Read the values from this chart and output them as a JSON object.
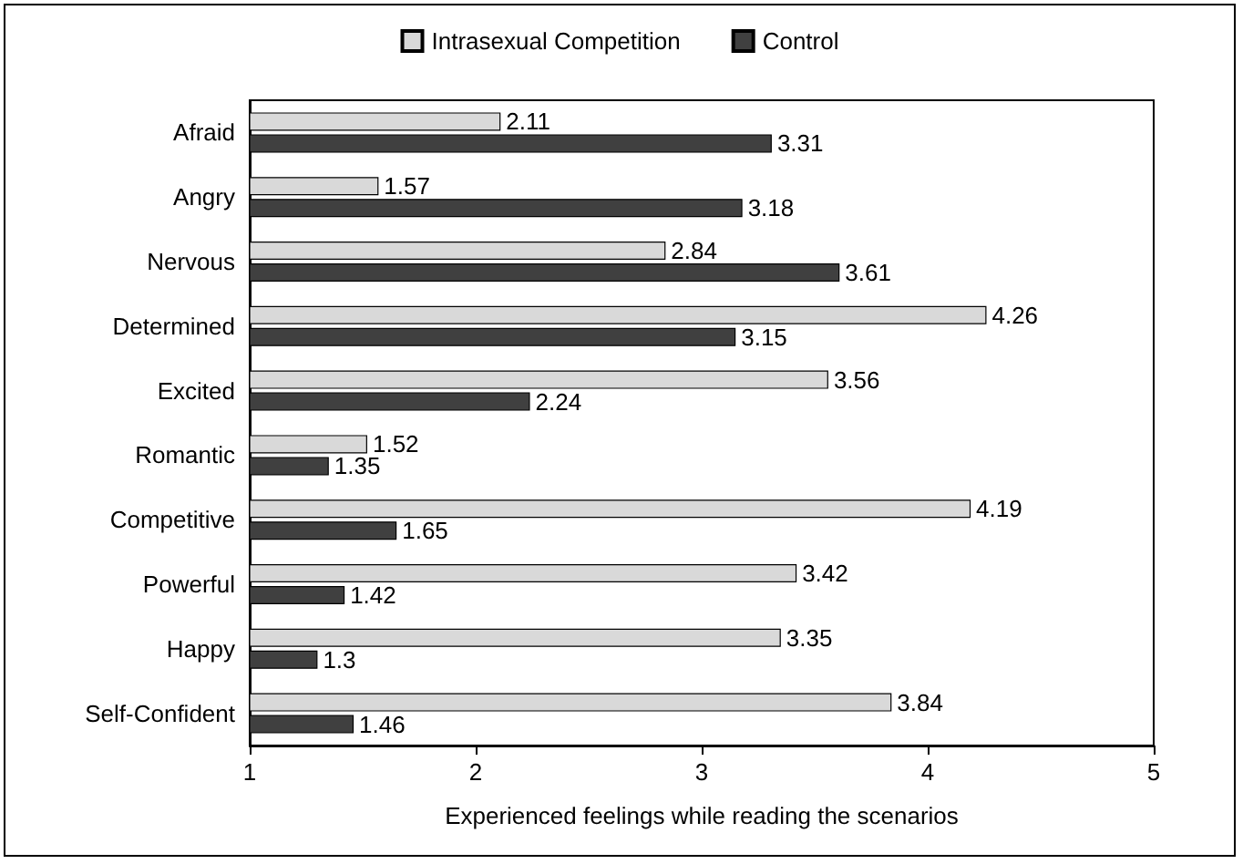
{
  "chart_data": {
    "type": "bar",
    "orientation": "horizontal",
    "xlabel": "Experienced feelings while reading the scenarios",
    "categories": [
      "Afraid",
      "Angry",
      "Nervous",
      "Determined",
      "Excited",
      "Romantic",
      "Competitive",
      "Powerful",
      "Happy",
      "Self-Confident"
    ],
    "series": [
      {
        "name": "Intrasexual Competition",
        "color": "#d9d9d9",
        "values": [
          2.11,
          1.57,
          2.84,
          4.26,
          3.56,
          1.52,
          4.19,
          3.42,
          3.35,
          3.84
        ]
      },
      {
        "name": "Control",
        "color": "#404040",
        "values": [
          3.31,
          3.18,
          3.61,
          3.15,
          2.24,
          1.35,
          1.65,
          1.42,
          1.3,
          1.46
        ]
      }
    ],
    "xlim": [
      1,
      5
    ],
    "xticks": [
      1,
      2,
      3,
      4,
      5
    ],
    "grid": false,
    "legend": "top",
    "data_labels": true
  }
}
